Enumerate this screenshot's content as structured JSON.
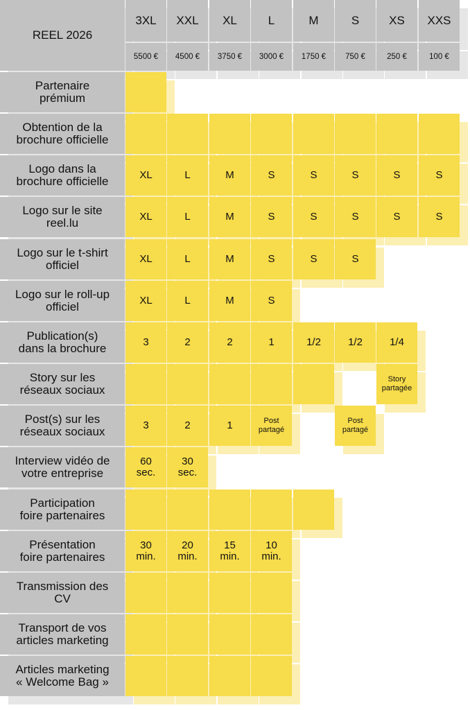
{
  "title": "REEL 2026",
  "tiers": [
    {
      "size": "3XL",
      "price": "5500 €"
    },
    {
      "size": "XXL",
      "price": "4500 €"
    },
    {
      "size": "XL",
      "price": "3750 €"
    },
    {
      "size": "L",
      "price": "3000 €"
    },
    {
      "size": "M",
      "price": "1750 €"
    },
    {
      "size": "S",
      "price": "750 €"
    },
    {
      "size": "XS",
      "price": "250 €"
    },
    {
      "size": "XXS",
      "price": "100 €"
    }
  ],
  "rows": [
    {
      "label": "Partenaire\nprémium",
      "cells": [
        ""
      ]
    },
    {
      "label": "Obtention de la\nbrochure officielle",
      "cells": [
        "",
        "",
        "",
        "",
        "",
        "",
        "",
        ""
      ]
    },
    {
      "label": "Logo dans la\nbrochure officielle",
      "cells": [
        "XL",
        "L",
        "M",
        "S",
        "S",
        "S",
        "S",
        "S"
      ]
    },
    {
      "label": "Logo sur le site\nreel.lu",
      "cells": [
        "XL",
        "L",
        "M",
        "S",
        "S",
        "S",
        "S",
        "S"
      ]
    },
    {
      "label": "Logo sur le t-shirt\nofficiel",
      "cells": [
        "XL",
        "L",
        "M",
        "S",
        "S",
        "S"
      ]
    },
    {
      "label": "Logo sur le roll-up\nofficiel",
      "cells": [
        "XL",
        "L",
        "M",
        "S"
      ]
    },
    {
      "label": "Publication(s)\ndans la brochure",
      "cells": [
        "3",
        "2",
        "2",
        "1",
        "1/2",
        "1/2",
        "1/4"
      ]
    },
    {
      "label": "Story sur les\nréseaux sociaux",
      "cells": [
        "",
        "",
        "",
        "",
        "",
        null,
        "Story\npartagée"
      ]
    },
    {
      "label": "Post(s) sur les\nréseaux sociaux",
      "cells": [
        "3",
        "2",
        "1",
        "Post\npartagé",
        null,
        "Post\npartagé"
      ]
    },
    {
      "label": "Interview vidéo de\nvotre entreprise",
      "cells": [
        "60\nsec.",
        "30\nsec."
      ]
    },
    {
      "label": "Participation\nfoire partenaires",
      "cells": [
        "",
        "",
        "",
        "",
        ""
      ]
    },
    {
      "label": "Présentation\nfoire partenaires",
      "cells": [
        "30\nmin.",
        "20\nmin.",
        "15\nmin.",
        "10\nmin."
      ]
    },
    {
      "label": "Transmission des\nCV",
      "cells": [
        "",
        "",
        "",
        ""
      ]
    },
    {
      "label": "Transport de vos\narticles marketing",
      "cells": [
        "",
        "",
        "",
        ""
      ]
    },
    {
      "label": "Articles marketing\n« Welcome Bag »",
      "cells": [
        "",
        "",
        "",
        ""
      ]
    }
  ],
  "colors": {
    "header": "#c2c2c2",
    "header_shadow": "#e6e6e6",
    "cell": "#f7dc4b",
    "cell_shadow": "#fcefb3"
  }
}
